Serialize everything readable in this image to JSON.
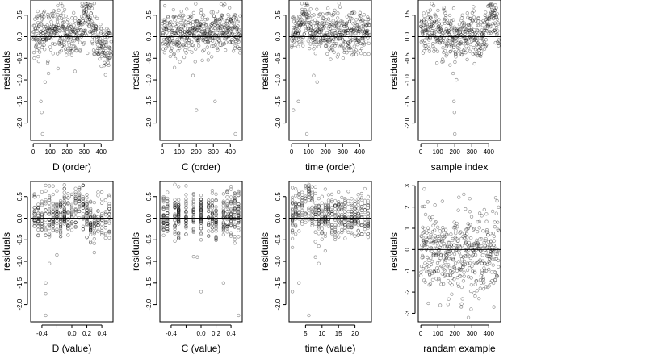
{
  "figure": {
    "background": "#ffffff",
    "point_color": "#000000",
    "point_opacity": 0.42
  },
  "chart_data": [
    {
      "type": "scatter",
      "xlabel": "D (order)",
      "ylabel": "residuals",
      "xlim": [
        -15,
        470
      ],
      "ylim": [
        -2.4,
        0.85
      ],
      "xticks": [
        0,
        100,
        200,
        300,
        400
      ],
      "yticks": [
        0.5,
        0.0,
        -0.5,
        -1.0,
        -1.5,
        -2.0
      ],
      "ytick_labels": [
        "0.5",
        "0.0",
        "-0.5",
        "-1.0",
        "-1.5",
        "-2.0"
      ],
      "ref_y": 0,
      "x_kind": "order",
      "n": 460,
      "profile": [
        [
          0,
          0.05
        ],
        [
          100,
          0.15
        ],
        [
          160,
          0.18
        ],
        [
          220,
          -0.02
        ],
        [
          260,
          0.0
        ],
        [
          290,
          0.35
        ],
        [
          320,
          0.5
        ],
        [
          350,
          0.3
        ],
        [
          380,
          -0.1
        ],
        [
          420,
          -0.3
        ],
        [
          460,
          -0.2
        ]
      ],
      "outliers": [
        [
          45,
          -1.5
        ],
        [
          50,
          -1.75
        ],
        [
          55,
          -2.25
        ],
        [
          70,
          -1.05
        ],
        [
          90,
          -0.85
        ]
      ]
    },
    {
      "type": "scatter",
      "xlabel": "C (order)",
      "ylabel": "residuals",
      "xlim": [
        -15,
        470
      ],
      "ylim": [
        -2.4,
        0.85
      ],
      "xticks": [
        0,
        100,
        200,
        300,
        400
      ],
      "yticks": [
        0.5,
        0.0,
        -0.5,
        -1.0,
        -1.5,
        -2.0
      ],
      "ytick_labels": [
        "0.5",
        "0.0",
        "-0.5",
        "-1.0",
        "-1.5",
        "-2.0"
      ],
      "ref_y": 0,
      "x_kind": "order",
      "n": 460,
      "profile": [
        [
          0,
          0.05
        ],
        [
          200,
          0.1
        ],
        [
          400,
          0.15
        ],
        [
          460,
          0.05
        ]
      ],
      "outliers": [
        [
          200,
          -1.7
        ],
        [
          310,
          -1.5
        ],
        [
          430,
          -2.25
        ],
        [
          180,
          -0.9
        ]
      ]
    },
    {
      "type": "scatter",
      "xlabel": "time (order)",
      "ylabel": "residuals",
      "xlim": [
        -15,
        470
      ],
      "ylim": [
        -2.4,
        0.85
      ],
      "xticks": [
        0,
        100,
        200,
        300,
        400
      ],
      "yticks": [
        0.5,
        0.0,
        -0.5,
        -1.0,
        -1.5,
        -2.0
      ],
      "ytick_labels": [
        "0.5",
        "0.0",
        "-0.5",
        "-1.0",
        "-1.5",
        "-2.0"
      ],
      "ref_y": 0,
      "x_kind": "order",
      "n": 460,
      "profile": [
        [
          0,
          0.05
        ],
        [
          50,
          0.3
        ],
        [
          90,
          0.45
        ],
        [
          130,
          0.05
        ],
        [
          250,
          0.1
        ],
        [
          350,
          0.05
        ],
        [
          460,
          0.05
        ]
      ],
      "outliers": [
        [
          10,
          -1.7
        ],
        [
          40,
          -1.5
        ],
        [
          90,
          -2.25
        ],
        [
          150,
          -1.05
        ],
        [
          130,
          -0.9
        ]
      ]
    },
    {
      "type": "scatter",
      "xlabel": "sample index",
      "ylabel": "residuals",
      "xlim": [
        -15,
        470
      ],
      "ylim": [
        -2.4,
        0.85
      ],
      "xticks": [
        0,
        100,
        200,
        300,
        400
      ],
      "yticks": [
        0.5,
        0.0,
        -0.5,
        -1.0,
        -1.5,
        -2.0
      ],
      "ytick_labels": [
        "0.5",
        "0.0",
        "-0.5",
        "-1.0",
        "-1.5",
        "-2.0"
      ],
      "ref_y": 0,
      "x_kind": "order",
      "n": 460,
      "profile": [
        [
          0,
          0.1
        ],
        [
          150,
          0.1
        ],
        [
          200,
          -0.05
        ],
        [
          300,
          0.05
        ],
        [
          360,
          -0.15
        ],
        [
          400,
          0.35
        ],
        [
          430,
          0.5
        ],
        [
          460,
          0.05
        ]
      ],
      "outliers": [
        [
          195,
          -1.5
        ],
        [
          198,
          -1.75
        ],
        [
          200,
          -2.25
        ],
        [
          210,
          -1.0
        ],
        [
          190,
          -0.85
        ]
      ]
    },
    {
      "type": "scatter",
      "xlabel": "D (value)",
      "ylabel": "residuals",
      "xlim": [
        -0.55,
        0.55
      ],
      "ylim": [
        -2.4,
        0.85
      ],
      "xticks": [
        -0.4,
        -0.2,
        0.0,
        0.2,
        0.4
      ],
      "xtick_labels": [
        "-0.4",
        "",
        "0.0",
        "0.2",
        "0.4"
      ],
      "yticks": [
        0.5,
        0.0,
        -0.5,
        -1.0,
        -1.5,
        -2.0
      ],
      "ytick_labels": [
        "0.5",
        "0.0",
        "-0.5",
        "-1.0",
        "-1.5",
        "-2.0"
      ],
      "ref_y": 0,
      "x_kind": "value",
      "n": 460,
      "x_values": [
        -0.5,
        -0.45,
        -0.4,
        -0.35,
        -0.3,
        -0.25,
        -0.2,
        -0.15,
        -0.1,
        -0.05,
        0.0,
        0.05,
        0.1,
        0.15,
        0.2,
        0.25,
        0.3,
        0.35,
        0.4,
        0.45,
        0.5
      ],
      "profile": [
        [
          -0.5,
          0.05
        ],
        [
          0.0,
          0.05
        ],
        [
          0.1,
          0.4
        ],
        [
          0.15,
          0.3
        ],
        [
          0.25,
          -0.1
        ],
        [
          0.5,
          -0.05
        ]
      ],
      "outliers": [
        [
          -0.35,
          -1.5
        ],
        [
          -0.35,
          -1.75
        ],
        [
          -0.35,
          -2.25
        ],
        [
          -0.3,
          -1.05
        ],
        [
          -0.2,
          -0.85
        ]
      ]
    },
    {
      "type": "scatter",
      "xlabel": "C (value)",
      "ylabel": "residuals",
      "xlim": [
        -0.55,
        0.55
      ],
      "ylim": [
        -2.4,
        0.85
      ],
      "xticks": [
        -0.4,
        -0.2,
        0.0,
        0.2,
        0.4
      ],
      "xtick_labels": [
        "-0.4",
        "",
        "0.0",
        "0.2",
        "0.4"
      ],
      "yticks": [
        0.5,
        0.0,
        -0.5,
        -1.0,
        -1.5,
        -2.0
      ],
      "ytick_labels": [
        "0.5",
        "0.0",
        "-0.5",
        "-1.0",
        "-1.5",
        "-2.0"
      ],
      "ref_y": 0,
      "x_kind": "value",
      "n": 460,
      "x_values": [
        -0.5,
        -0.45,
        -0.35,
        -0.3,
        -0.2,
        -0.1,
        0.0,
        0.1,
        0.15,
        0.2,
        0.3,
        0.35,
        0.4,
        0.45,
        0.5
      ],
      "profile": [
        [
          -0.5,
          0.05
        ],
        [
          0.0,
          0.05
        ],
        [
          0.5,
          0.15
        ]
      ],
      "outliers": [
        [
          0.0,
          -1.7
        ],
        [
          0.3,
          -1.5
        ],
        [
          0.5,
          -2.25
        ],
        [
          -0.05,
          -0.9
        ]
      ]
    },
    {
      "type": "scatter",
      "xlabel": "time (value)",
      "ylabel": "residuals",
      "xlim": [
        0,
        25
      ],
      "ylim": [
        -2.4,
        0.85
      ],
      "xticks": [
        5,
        10,
        15,
        20
      ],
      "yticks": [
        0.5,
        0.0,
        -0.5,
        -1.0,
        -1.5,
        -2.0
      ],
      "ytick_labels": [
        "0.5",
        "0.0",
        "-0.5",
        "-1.0",
        "-1.5",
        "-2.0"
      ],
      "ref_y": 0,
      "x_kind": "value",
      "n": 460,
      "x_values": [
        1,
        2,
        3,
        4,
        5,
        6,
        7,
        8,
        9,
        10,
        11,
        12,
        13,
        14,
        15,
        16,
        17,
        18,
        19,
        20,
        21,
        22,
        23,
        24
      ],
      "profile": [
        [
          1,
          0.05
        ],
        [
          4,
          0.3
        ],
        [
          6,
          0.45
        ],
        [
          8,
          0.05
        ],
        [
          24,
          0.05
        ]
      ],
      "outliers": [
        [
          1,
          -1.7
        ],
        [
          3,
          -1.5
        ],
        [
          6,
          -2.25
        ],
        [
          9,
          -1.05
        ],
        [
          8,
          -0.9
        ]
      ]
    },
    {
      "type": "scatter",
      "xlabel": "randam example",
      "ylabel": "residuals",
      "xlim": [
        -15,
        470
      ],
      "ylim": [
        -3.4,
        3.2
      ],
      "xticks": [
        0,
        100,
        200,
        300,
        400
      ],
      "yticks": [
        3,
        2,
        1,
        0,
        -1,
        -2,
        -3
      ],
      "ytick_labels": [
        "3",
        "2",
        "1",
        "0",
        "-1",
        "-2",
        "-3"
      ],
      "ref_y": 0,
      "x_kind": "order",
      "n": 460,
      "profile": [
        [
          0,
          0.1
        ],
        [
          100,
          0.0
        ],
        [
          200,
          -0.3
        ],
        [
          300,
          -0.2
        ],
        [
          460,
          -0.1
        ]
      ],
      "outliers": [
        [
          20,
          2.85
        ],
        [
          280,
          -3.2
        ],
        [
          430,
          -2.7
        ]
      ]
    }
  ]
}
